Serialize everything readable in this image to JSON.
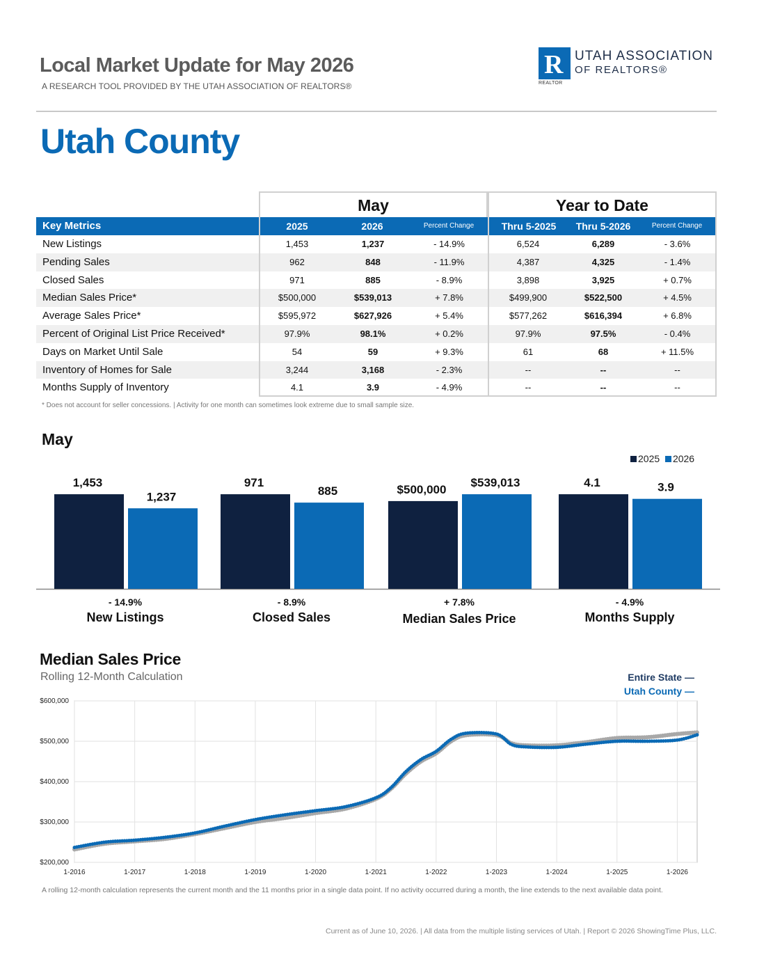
{
  "header": {
    "title": "Local Market Update for May 2026",
    "subtitle": "A RESEARCH TOOL PROVIDED BY THE UTAH ASSOCIATION OF REALTORS®",
    "logo_line1": "UTAH ASSOCIATION",
    "logo_line2": "OF REALTORS®",
    "logo_letter": "R",
    "logo_small": "REALTOR"
  },
  "county": "Utah County",
  "table": {
    "group_may": "May",
    "group_ytd": "Year to Date",
    "head": {
      "key": "Key Metrics",
      "y1": "2025",
      "y2": "2026",
      "pc1": "Percent Change",
      "t1": "Thru 5-2025",
      "t2": "Thru 5-2026",
      "pc2": "Percent Change"
    },
    "rows": [
      {
        "label": "New Listings",
        "v1": "1,453",
        "v2": "1,237",
        "p1": "- 14.9%",
        "t1": "6,524",
        "t2": "6,289",
        "p2": "- 3.6%"
      },
      {
        "label": "Pending Sales",
        "v1": "962",
        "v2": "848",
        "p1": "- 11.9%",
        "t1": "4,387",
        "t2": "4,325",
        "p2": "- 1.4%"
      },
      {
        "label": "Closed Sales",
        "v1": "971",
        "v2": "885",
        "p1": "- 8.9%",
        "t1": "3,898",
        "t2": "3,925",
        "p2": "+ 0.7%"
      },
      {
        "label": "Median Sales Price*",
        "v1": "$500,000",
        "v2": "$539,013",
        "p1": "+ 7.8%",
        "t1": "$499,900",
        "t2": "$522,500",
        "p2": "+ 4.5%"
      },
      {
        "label": "Average Sales Price*",
        "v1": "$595,972",
        "v2": "$627,926",
        "p1": "+ 5.4%",
        "t1": "$577,262",
        "t2": "$616,394",
        "p2": "+ 6.8%"
      },
      {
        "label": "Percent of Original List Price Received*",
        "v1": "97.9%",
        "v2": "98.1%",
        "p1": "+ 0.2%",
        "t1": "97.9%",
        "t2": "97.5%",
        "p2": "- 0.4%"
      },
      {
        "label": "Days on Market Until Sale",
        "v1": "54",
        "v2": "59",
        "p1": "+ 9.3%",
        "t1": "61",
        "t2": "68",
        "p2": "+ 11.5%"
      },
      {
        "label": "Inventory of Homes for Sale",
        "v1": "3,244",
        "v2": "3,168",
        "p1": "- 2.3%",
        "t1": "--",
        "t2": "--",
        "p2": "--"
      },
      {
        "label": "Months Supply of Inventory",
        "v1": "4.1",
        "v2": "3.9",
        "p1": "- 4.9%",
        "t1": "--",
        "t2": "--",
        "p2": "--"
      }
    ],
    "footnote": "* Does not account for seller concessions.  |  Activity for one month can sometimes look extreme due to small sample size."
  },
  "may_section": {
    "title": "May",
    "legend": [
      "2025",
      "2026"
    ]
  },
  "chart_data": [
    {
      "type": "bar",
      "groups": [
        {
          "category": "New Listings",
          "v2025": 1453,
          "v2026": 1237,
          "label2025": "1,453",
          "label2026": "1,237",
          "pct": "- 14.9%"
        },
        {
          "category": "Closed Sales",
          "v2025": 971,
          "v2026": 885,
          "label2025": "971",
          "label2026": "885",
          "pct": "- 8.9%"
        },
        {
          "category": "Median Sales Price",
          "v2025": 500000,
          "v2026": 539013,
          "label2025": "$500,000",
          "label2026": "$539,013",
          "pct": "+ 7.8%"
        },
        {
          "category": "Months Supply",
          "v2025": 4.1,
          "v2026": 3.9,
          "label2025": "4.1",
          "label2026": "3.9",
          "pct": "- 4.9%"
        }
      ],
      "series": [
        {
          "name": "2025"
        },
        {
          "name": "2026"
        }
      ]
    },
    {
      "type": "line",
      "title": "Median Sales Price",
      "subtitle": "Rolling 12-Month Calculation",
      "ylim": [
        200000,
        600000
      ],
      "yticks": [
        "$200,000",
        "$300,000",
        "$400,000",
        "$500,000",
        "$600,000"
      ],
      "xticks": [
        "1-2016",
        "1-2017",
        "1-2018",
        "1-2019",
        "1-2020",
        "1-2021",
        "1-2022",
        "1-2023",
        "1-2024",
        "1-2025",
        "1-2026"
      ],
      "grid": true,
      "series": [
        {
          "name": "Entire State",
          "x": [
            "1-2016",
            "7-2016",
            "1-2017",
            "7-2017",
            "1-2018",
            "7-2018",
            "1-2019",
            "7-2019",
            "1-2020",
            "7-2020",
            "1-2021",
            "4-2021",
            "7-2021",
            "10-2021",
            "1-2022",
            "4-2022",
            "7-2022",
            "1-2023",
            "4-2023",
            "7-2023",
            "1-2024",
            "7-2024",
            "1-2025",
            "7-2025",
            "1-2026",
            "5-2026"
          ],
          "y": [
            232000,
            246000,
            252000,
            258000,
            270000,
            285000,
            300000,
            310000,
            322000,
            333000,
            357000,
            382000,
            420000,
            450000,
            470000,
            500000,
            515000,
            515000,
            495000,
            490000,
            490000,
            498000,
            508000,
            510000,
            518000,
            522000
          ]
        },
        {
          "name": "Utah County",
          "x": [
            "1-2016",
            "7-2016",
            "1-2017",
            "7-2017",
            "1-2018",
            "7-2018",
            "1-2019",
            "7-2019",
            "1-2020",
            "7-2020",
            "1-2021",
            "4-2021",
            "7-2021",
            "10-2021",
            "1-2022",
            "4-2022",
            "7-2022",
            "1-2023",
            "4-2023",
            "7-2023",
            "1-2024",
            "7-2024",
            "1-2025",
            "7-2025",
            "1-2026",
            "5-2026"
          ],
          "y": [
            237000,
            250000,
            255000,
            262000,
            273000,
            290000,
            306000,
            318000,
            328000,
            338000,
            360000,
            385000,
            425000,
            455000,
            475000,
            505000,
            520000,
            518000,
            492000,
            486000,
            485000,
            493000,
            500000,
            500000,
            503000,
            516000
          ]
        }
      ],
      "legend_state": "Entire State",
      "legend_county": "Utah County"
    }
  ],
  "line_note": "A rolling 12-month calculation represents the current month and the 11 months prior in a single data point. If no activity occurred during a month, the line extends to the next available data point.",
  "page_footer": "Current as of June 10, 2026.  |  All data from the multiple listing services of Utah.  |  Report © 2026 ShowingTime Plus, LLC.",
  "colors": {
    "navy": "#0f2140",
    "blue": "#0b6ab5",
    "gray_line": "#a8a8a8"
  }
}
